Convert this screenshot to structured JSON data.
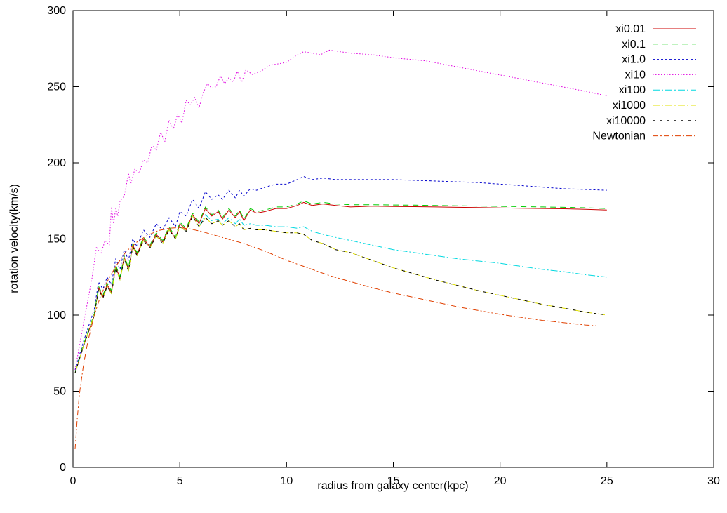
{
  "chart_data": {
    "type": "line",
    "title": "",
    "xlabel": "radius from galaxy center(kpc)",
    "ylabel": "rotation velocity(km/s)",
    "xlim": [
      0,
      30
    ],
    "ylim": [
      0,
      300
    ],
    "xticks": [
      0,
      5,
      10,
      15,
      20,
      25,
      30
    ],
    "yticks": [
      0,
      50,
      100,
      150,
      200,
      250,
      300
    ],
    "grid": false,
    "legend_position": "top-right",
    "series": [
      {
        "name": "xi0.01",
        "color": "#cc0000",
        "dash": "solid",
        "x": [
          0.1,
          0.5,
          1.0,
          1.2,
          1.4,
          1.6,
          1.8,
          2.0,
          2.2,
          2.4,
          2.6,
          2.8,
          3.0,
          3.3,
          3.6,
          3.9,
          4.2,
          4.5,
          4.8,
          5.0,
          5.3,
          5.6,
          5.9,
          6.2,
          6.5,
          6.8,
          7.0,
          7.3,
          7.6,
          7.8,
          8.0,
          8.3,
          8.6,
          9.0,
          9.5,
          10.0,
          10.5,
          10.8,
          11.2,
          11.7,
          12.3,
          13.0,
          14.0,
          15.0,
          16.0,
          17.0,
          18.0,
          19.0,
          20.0,
          21.0,
          22.0,
          23.0,
          24.0,
          25.0
        ],
        "y": [
          62,
          80,
          100,
          118,
          112,
          120,
          115,
          132,
          124,
          138,
          130,
          146,
          140,
          150,
          145,
          153,
          148,
          157,
          150,
          160,
          156,
          166,
          160,
          170,
          165,
          168,
          163,
          169,
          164,
          168,
          162,
          169,
          167,
          168,
          170,
          170,
          172,
          174,
          172,
          173,
          172,
          171,
          171.5,
          171.3,
          171.2,
          171,
          170.8,
          170.6,
          170.4,
          170.2,
          170,
          169.8,
          169.5,
          169
        ]
      },
      {
        "name": "xi0.1",
        "color": "#00cc00",
        "dash": "8,6",
        "x": [
          0.1,
          0.5,
          1.0,
          1.2,
          1.4,
          1.6,
          1.8,
          2.0,
          2.2,
          2.4,
          2.6,
          2.8,
          3.0,
          3.3,
          3.6,
          3.9,
          4.2,
          4.5,
          4.8,
          5.0,
          5.3,
          5.6,
          5.9,
          6.2,
          6.5,
          6.8,
          7.0,
          7.3,
          7.6,
          7.8,
          8.0,
          8.3,
          8.6,
          9.0,
          9.5,
          10.0,
          10.5,
          10.8,
          11.2,
          11.7,
          12.3,
          13.0,
          14.0,
          15.0,
          16.0,
          17.0,
          18.0,
          19.0,
          20.0,
          21.0,
          22.0,
          23.0,
          24.0,
          25.0
        ],
        "y": [
          63,
          81,
          101,
          119,
          113,
          121,
          116,
          133,
          125,
          139,
          131,
          147,
          141,
          151,
          146,
          154,
          149,
          158,
          151,
          161,
          157,
          167,
          161,
          171,
          166,
          169,
          164,
          170,
          165,
          169,
          163,
          170,
          168,
          169,
          171,
          171,
          173,
          175,
          173,
          174,
          173,
          172.5,
          172.5,
          172.3,
          172.2,
          172,
          171.8,
          171.6,
          171.4,
          171.2,
          171,
          170.8,
          170.5,
          170
        ]
      },
      {
        "name": "xi1.0",
        "color": "#0000cc",
        "dash": "3,3",
        "x": [
          0.1,
          0.5,
          1.0,
          1.2,
          1.4,
          1.6,
          1.8,
          2.0,
          2.2,
          2.4,
          2.6,
          2.8,
          3.0,
          3.3,
          3.6,
          3.9,
          4.2,
          4.5,
          4.8,
          5.0,
          5.3,
          5.6,
          5.9,
          6.2,
          6.5,
          6.8,
          7.0,
          7.3,
          7.6,
          7.8,
          8.0,
          8.3,
          8.6,
          9.0,
          9.5,
          10.0,
          10.5,
          10.8,
          11.2,
          11.7,
          12.3,
          13.0,
          14.0,
          15.0,
          16.0,
          17.0,
          18.0,
          19.0,
          20.0,
          21.0,
          22.0,
          23.0,
          24.0,
          25.0
        ],
        "y": [
          64,
          83,
          104,
          122,
          117,
          125,
          120,
          137,
          130,
          143,
          136,
          150,
          145,
          156,
          151,
          160,
          156,
          164,
          158,
          168,
          165,
          176,
          170,
          181,
          176,
          179,
          176,
          182,
          177,
          182,
          178,
          183,
          182,
          184,
          186,
          186,
          189,
          191,
          189,
          190,
          189,
          189,
          189,
          189,
          188.5,
          188,
          187.5,
          187,
          186,
          185,
          184,
          183,
          182.5,
          182
        ]
      },
      {
        "name": "xi10",
        "color": "#e000e0",
        "dash": "1.5,2.5",
        "x": [
          0.1,
          0.5,
          0.9,
          1.1,
          1.3,
          1.5,
          1.7,
          1.8,
          1.9,
          2.0,
          2.1,
          2.2,
          2.4,
          2.6,
          2.7,
          2.9,
          3.1,
          3.3,
          3.5,
          3.7,
          3.9,
          4.1,
          4.3,
          4.5,
          4.7,
          4.9,
          5.1,
          5.3,
          5.5,
          5.7,
          5.9,
          6.1,
          6.3,
          6.5,
          6.7,
          6.9,
          7.1,
          7.3,
          7.5,
          7.7,
          7.9,
          8.1,
          8.4,
          8.8,
          9.2,
          9.6,
          10.0,
          10.4,
          10.8,
          11.2,
          11.6,
          12.0,
          12.5,
          13.0,
          14.0,
          15.0,
          16.5,
          18.0,
          19.5,
          21.0,
          22.5,
          24.0,
          25.0
        ],
        "y": [
          64,
          95,
          125,
          145,
          140,
          149,
          146,
          171,
          160,
          170,
          165,
          175,
          178,
          193,
          186,
          196,
          193,
          202,
          200,
          212,
          208,
          220,
          214,
          228,
          222,
          232,
          226,
          241,
          238,
          243,
          236,
          246,
          252,
          249,
          250,
          257,
          252,
          256,
          253,
          260,
          253,
          261,
          258,
          260,
          264,
          265,
          266,
          270,
          273,
          272,
          271,
          274,
          273,
          272,
          271,
          269,
          267,
          263,
          259,
          255,
          251,
          247,
          244
        ]
      },
      {
        "name": "xi100",
        "color": "#00d8e0",
        "dash": "10,3,2,3",
        "x": [
          0.1,
          0.5,
          1.0,
          1.2,
          1.4,
          1.6,
          1.8,
          2.0,
          2.2,
          2.4,
          2.6,
          2.8,
          3.0,
          3.3,
          3.6,
          3.9,
          4.2,
          4.5,
          4.8,
          5.0,
          5.3,
          5.6,
          5.9,
          6.2,
          6.5,
          6.8,
          7.0,
          7.3,
          7.6,
          7.8,
          8.0,
          8.3,
          8.6,
          9.0,
          9.5,
          10.0,
          10.5,
          10.8,
          11.2,
          11.7,
          12.3,
          13.0,
          14.0,
          15.0,
          16.0,
          17.0,
          18.0,
          19.0,
          20.0,
          21.0,
          22.0,
          23.0,
          24.0,
          25.0
        ],
        "y": [
          62,
          80,
          100,
          117,
          111,
          119,
          114,
          131,
          123,
          137,
          129,
          145,
          139,
          149,
          144,
          152,
          147,
          156,
          150,
          158,
          155,
          165,
          158,
          166,
          162,
          163,
          160,
          164,
          160,
          163,
          159,
          160,
          159,
          159,
          158,
          158,
          157,
          158,
          155,
          153,
          151,
          149,
          146,
          143,
          141,
          139,
          137,
          135.5,
          134,
          132,
          130,
          128.5,
          126.5,
          125
        ]
      },
      {
        "name": "xi1000",
        "color": "#e0e000",
        "dash": "10,3,2,3",
        "x": [
          0.1,
          0.5,
          1.0,
          1.2,
          1.4,
          1.6,
          1.8,
          2.0,
          2.2,
          2.4,
          2.6,
          2.8,
          3.0,
          3.3,
          3.6,
          3.9,
          4.2,
          4.5,
          4.8,
          5.0,
          5.3,
          5.6,
          5.9,
          6.2,
          6.5,
          6.8,
          7.0,
          7.3,
          7.6,
          7.8,
          8.0,
          8.3,
          8.6,
          9.0,
          9.5,
          10.0,
          10.5,
          10.8,
          11.2,
          11.7,
          12.3,
          13.0,
          14.0,
          15.0,
          16.0,
          17.0,
          18.0,
          19.0,
          20.0,
          21.0,
          22.0,
          23.0,
          24.0,
          25.0
        ],
        "y": [
          62,
          80,
          100,
          117,
          111,
          119,
          114,
          131,
          123,
          137,
          129,
          145,
          139,
          149,
          144,
          152,
          147,
          156,
          150,
          158,
          155,
          165,
          158,
          164,
          160,
          162,
          159,
          162,
          158,
          160,
          156,
          157,
          156,
          156,
          155,
          154,
          154,
          153,
          149,
          147,
          143,
          141,
          136,
          131,
          127,
          123,
          119.5,
          116,
          113,
          110,
          107,
          104.5,
          102,
          100
        ]
      },
      {
        "name": "xi10000",
        "color": "#000000",
        "dash": "4,6",
        "x": [
          0.1,
          0.5,
          1.0,
          1.2,
          1.4,
          1.6,
          1.8,
          2.0,
          2.2,
          2.4,
          2.6,
          2.8,
          3.0,
          3.3,
          3.6,
          3.9,
          4.2,
          4.5,
          4.8,
          5.0,
          5.3,
          5.6,
          5.9,
          6.2,
          6.5,
          6.8,
          7.0,
          7.3,
          7.6,
          7.8,
          8.0,
          8.3,
          8.6,
          9.0,
          9.5,
          10.0,
          10.5,
          10.8,
          11.2,
          11.7,
          12.3,
          13.0,
          14.0,
          15.0,
          16.0,
          17.0,
          18.0,
          19.0,
          20.0,
          21.0,
          22.0,
          23.0,
          24.0,
          25.0
        ],
        "y": [
          62,
          80,
          100,
          117,
          111,
          119,
          114,
          131,
          123,
          137,
          129,
          145,
          139,
          149,
          144,
          152,
          147,
          156,
          150,
          158,
          155,
          165,
          158,
          164,
          160,
          162,
          159,
          162,
          158,
          160,
          156,
          157,
          156,
          156,
          155,
          154,
          154,
          153,
          149,
          147,
          143,
          141,
          136,
          131,
          127,
          123,
          119.5,
          116,
          113,
          110,
          107,
          104.5,
          102,
          100
        ]
      },
      {
        "name": "Newtonian",
        "color": "#e04000",
        "dash": "8,3,2,3",
        "x": [
          0.1,
          0.2,
          0.3,
          0.5,
          0.7,
          1.0,
          1.3,
          1.6,
          2.0,
          2.5,
          3.0,
          3.5,
          4.0,
          4.5,
          5.0,
          5.5,
          6.0,
          7.0,
          8.0,
          9.0,
          10.0,
          11.0,
          12.0,
          13.0,
          14.0,
          15.0,
          16.0,
          17.0,
          18.0,
          19.0,
          20.0,
          21.0,
          22.0,
          23.0,
          24.0,
          24.5
        ],
        "y": [
          12,
          32,
          48,
          68,
          83,
          100,
          113,
          122,
          132,
          142,
          148,
          152.5,
          155.5,
          157,
          157.5,
          156.5,
          155,
          151,
          147,
          142,
          136,
          131,
          126,
          122,
          118,
          114.5,
          111.5,
          108.5,
          105.5,
          103,
          100.5,
          98.5,
          96.5,
          95,
          93.5,
          93
        ]
      }
    ]
  }
}
